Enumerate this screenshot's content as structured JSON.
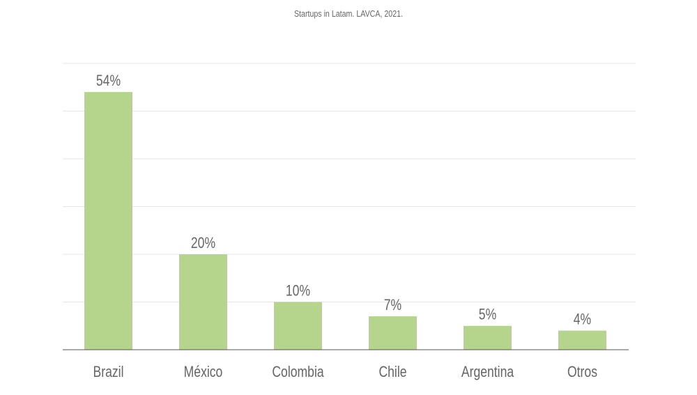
{
  "chart_data": {
    "type": "bar",
    "title": "Startups in Latam. LAVCA, 2021.",
    "categories": [
      "Brazil",
      "México",
      "Colombia",
      "Chile",
      "Argentina",
      "Otros"
    ],
    "values": [
      54,
      20,
      10,
      7,
      5,
      4
    ],
    "value_labels": [
      "54%",
      "20%",
      "10%",
      "7%",
      "5%",
      "4%"
    ],
    "xlabel": "",
    "ylabel": "",
    "ylim": [
      0,
      60
    ],
    "grid": true,
    "bar_color": "#b5d58c",
    "text_color": "#666666",
    "grid_color": "#e6e6e6",
    "axis_color": "#555555"
  }
}
